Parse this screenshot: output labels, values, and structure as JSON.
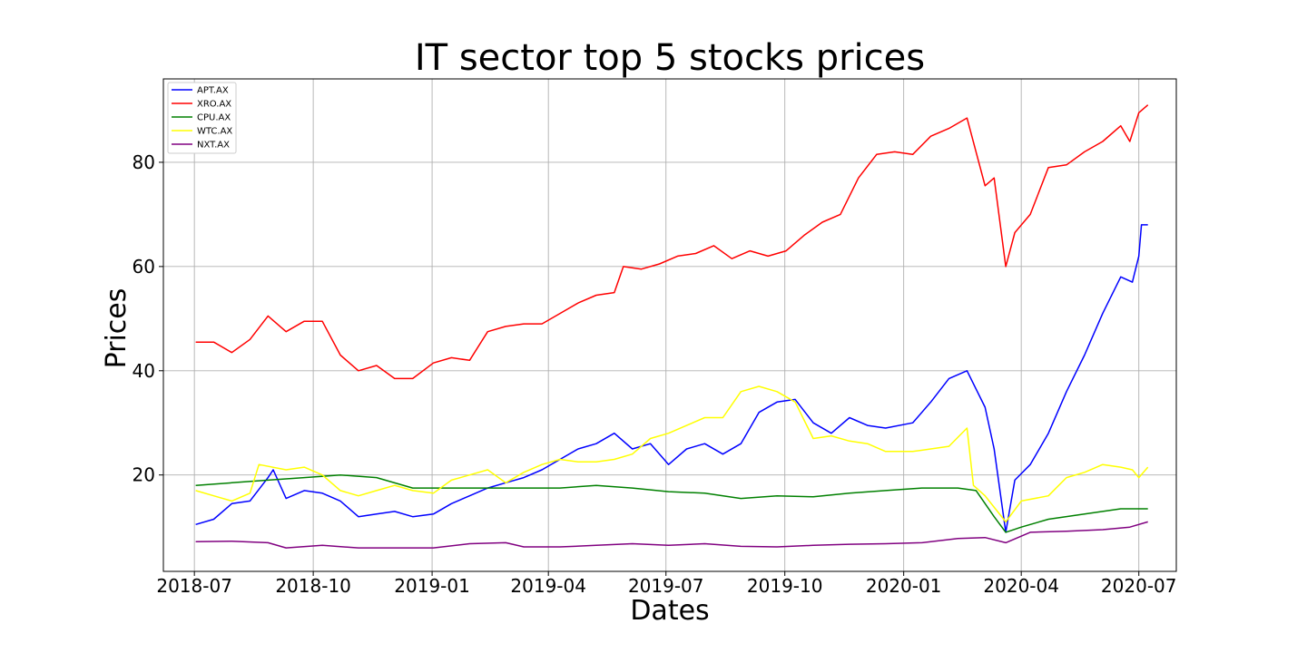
{
  "chart_data": {
    "type": "line",
    "title": "IT sector top 5 stocks prices",
    "xlabel": "Dates",
    "ylabel": "Prices",
    "x_ticks": [
      "2018-07",
      "2018-10",
      "2019-01",
      "2019-04",
      "2019-07",
      "2019-10",
      "2020-01",
      "2020-04",
      "2020-07"
    ],
    "y_ticks": [
      20,
      40,
      60,
      80
    ],
    "xlim": [
      "2018-06-07",
      "2020-07-30"
    ],
    "ylim": [
      1.5,
      96
    ],
    "grid": true,
    "legend_position": "upper-left",
    "series": [
      {
        "name": "APT.AX",
        "color": "#0000ff",
        "points": [
          [
            "2018-07-02",
            10.5
          ],
          [
            "2018-07-16",
            11.5
          ],
          [
            "2018-07-30",
            14.5
          ],
          [
            "2018-08-13",
            15.0
          ],
          [
            "2018-08-27",
            19.5
          ],
          [
            "2018-08-31",
            21.0
          ],
          [
            "2018-09-10",
            15.5
          ],
          [
            "2018-09-24",
            17.0
          ],
          [
            "2018-10-08",
            16.5
          ],
          [
            "2018-10-22",
            15.0
          ],
          [
            "2018-11-05",
            12.0
          ],
          [
            "2018-11-19",
            12.5
          ],
          [
            "2018-12-03",
            13.0
          ],
          [
            "2018-12-17",
            12.0
          ],
          [
            "2019-01-02",
            12.5
          ],
          [
            "2019-01-16",
            14.5
          ],
          [
            "2019-01-30",
            16.0
          ],
          [
            "2019-02-13",
            17.5
          ],
          [
            "2019-02-27",
            18.5
          ],
          [
            "2019-03-13",
            19.5
          ],
          [
            "2019-03-27",
            21.0
          ],
          [
            "2019-04-10",
            23.0
          ],
          [
            "2019-04-24",
            25.0
          ],
          [
            "2019-05-08",
            26.0
          ],
          [
            "2019-05-22",
            28.0
          ],
          [
            "2019-06-05",
            25.0
          ],
          [
            "2019-06-19",
            26.0
          ],
          [
            "2019-07-03",
            22.0
          ],
          [
            "2019-07-17",
            25.0
          ],
          [
            "2019-07-31",
            26.0
          ],
          [
            "2019-08-14",
            24.0
          ],
          [
            "2019-08-28",
            26.0
          ],
          [
            "2019-09-11",
            32.0
          ],
          [
            "2019-09-25",
            34.0
          ],
          [
            "2019-10-09",
            34.5
          ],
          [
            "2019-10-23",
            30.0
          ],
          [
            "2019-11-06",
            28.0
          ],
          [
            "2019-11-20",
            31.0
          ],
          [
            "2019-12-04",
            29.5
          ],
          [
            "2019-12-18",
            29.0
          ],
          [
            "2020-01-08",
            30.0
          ],
          [
            "2020-01-22",
            34.0
          ],
          [
            "2020-02-05",
            38.5
          ],
          [
            "2020-02-19",
            40.0
          ],
          [
            "2020-03-04",
            33.0
          ],
          [
            "2020-03-11",
            25.0
          ],
          [
            "2020-03-20",
            9.0
          ],
          [
            "2020-03-27",
            19.0
          ],
          [
            "2020-04-08",
            22.0
          ],
          [
            "2020-04-22",
            28.0
          ],
          [
            "2020-05-06",
            36.0
          ],
          [
            "2020-05-20",
            43.0
          ],
          [
            "2020-06-03",
            51.0
          ],
          [
            "2020-06-17",
            58.0
          ],
          [
            "2020-06-26",
            57.0
          ],
          [
            "2020-07-01",
            62.0
          ],
          [
            "2020-07-03",
            68.0
          ],
          [
            "2020-07-08",
            68.0
          ]
        ]
      },
      {
        "name": "XRO.AX",
        "color": "#ff0000",
        "points": [
          [
            "2018-07-02",
            45.5
          ],
          [
            "2018-07-16",
            45.5
          ],
          [
            "2018-07-30",
            43.5
          ],
          [
            "2018-08-13",
            46.0
          ],
          [
            "2018-08-27",
            50.5
          ],
          [
            "2018-09-10",
            47.5
          ],
          [
            "2018-09-24",
            49.5
          ],
          [
            "2018-10-08",
            49.5
          ],
          [
            "2018-10-22",
            43.0
          ],
          [
            "2018-11-05",
            40.0
          ],
          [
            "2018-11-19",
            41.0
          ],
          [
            "2018-12-03",
            38.5
          ],
          [
            "2018-12-17",
            38.5
          ],
          [
            "2019-01-02",
            41.5
          ],
          [
            "2019-01-16",
            42.5
          ],
          [
            "2019-01-30",
            42.0
          ],
          [
            "2019-02-13",
            47.5
          ],
          [
            "2019-02-27",
            48.5
          ],
          [
            "2019-03-13",
            49.0
          ],
          [
            "2019-03-27",
            49.0
          ],
          [
            "2019-04-10",
            51.0
          ],
          [
            "2019-04-24",
            53.0
          ],
          [
            "2019-05-08",
            54.5
          ],
          [
            "2019-05-22",
            55.0
          ],
          [
            "2019-05-29",
            60.0
          ],
          [
            "2019-06-12",
            59.5
          ],
          [
            "2019-06-26",
            60.5
          ],
          [
            "2019-07-10",
            62.0
          ],
          [
            "2019-07-24",
            62.5
          ],
          [
            "2019-08-07",
            64.0
          ],
          [
            "2019-08-21",
            61.5
          ],
          [
            "2019-09-04",
            63.0
          ],
          [
            "2019-09-18",
            62.0
          ],
          [
            "2019-10-02",
            63.0
          ],
          [
            "2019-10-16",
            66.0
          ],
          [
            "2019-10-30",
            68.5
          ],
          [
            "2019-11-13",
            70.0
          ],
          [
            "2019-11-27",
            77.0
          ],
          [
            "2019-12-11",
            81.5
          ],
          [
            "2019-12-25",
            82.0
          ],
          [
            "2020-01-08",
            81.5
          ],
          [
            "2020-01-22",
            85.0
          ],
          [
            "2020-02-05",
            86.5
          ],
          [
            "2020-02-19",
            88.5
          ],
          [
            "2020-03-04",
            75.5
          ],
          [
            "2020-03-11",
            77.0
          ],
          [
            "2020-03-20",
            60.0
          ],
          [
            "2020-03-27",
            66.5
          ],
          [
            "2020-04-08",
            70.0
          ],
          [
            "2020-04-22",
            79.0
          ],
          [
            "2020-05-06",
            79.5
          ],
          [
            "2020-05-20",
            82.0
          ],
          [
            "2020-06-03",
            84.0
          ],
          [
            "2020-06-17",
            87.0
          ],
          [
            "2020-06-24",
            84.0
          ],
          [
            "2020-07-01",
            89.5
          ],
          [
            "2020-07-08",
            91.0
          ]
        ]
      },
      {
        "name": "CPU.AX",
        "color": "#008000",
        "points": [
          [
            "2018-07-02",
            18.0
          ],
          [
            "2018-07-30",
            18.5
          ],
          [
            "2018-08-27",
            19.0
          ],
          [
            "2018-09-24",
            19.5
          ],
          [
            "2018-10-22",
            20.0
          ],
          [
            "2018-11-19",
            19.5
          ],
          [
            "2018-12-17",
            17.5
          ],
          [
            "2019-01-16",
            17.5
          ],
          [
            "2019-02-13",
            17.5
          ],
          [
            "2019-03-13",
            17.5
          ],
          [
            "2019-04-10",
            17.5
          ],
          [
            "2019-05-08",
            18.0
          ],
          [
            "2019-06-05",
            17.5
          ],
          [
            "2019-07-03",
            16.8
          ],
          [
            "2019-07-31",
            16.5
          ],
          [
            "2019-08-28",
            15.5
          ],
          [
            "2019-09-25",
            16.0
          ],
          [
            "2019-10-23",
            15.8
          ],
          [
            "2019-11-20",
            16.5
          ],
          [
            "2019-12-18",
            17.0
          ],
          [
            "2020-01-15",
            17.5
          ],
          [
            "2020-02-12",
            17.5
          ],
          [
            "2020-02-26",
            17.0
          ],
          [
            "2020-03-11",
            12.0
          ],
          [
            "2020-03-20",
            9.0
          ],
          [
            "2020-04-01",
            10.0
          ],
          [
            "2020-04-22",
            11.5
          ],
          [
            "2020-05-20",
            12.5
          ],
          [
            "2020-06-17",
            13.5
          ],
          [
            "2020-07-08",
            13.5
          ]
        ]
      },
      {
        "name": "WTC.AX",
        "color": "#ffff00",
        "points": [
          [
            "2018-07-02",
            17.0
          ],
          [
            "2018-07-16",
            16.0
          ],
          [
            "2018-07-30",
            15.0
          ],
          [
            "2018-08-13",
            16.5
          ],
          [
            "2018-08-20",
            22.0
          ],
          [
            "2018-09-10",
            21.0
          ],
          [
            "2018-09-24",
            21.5
          ],
          [
            "2018-10-08",
            20.0
          ],
          [
            "2018-10-22",
            17.0
          ],
          [
            "2018-11-05",
            16.0
          ],
          [
            "2018-11-19",
            17.0
          ],
          [
            "2018-12-03",
            18.0
          ],
          [
            "2018-12-17",
            17.0
          ],
          [
            "2019-01-02",
            16.5
          ],
          [
            "2019-01-16",
            19.0
          ],
          [
            "2019-01-30",
            20.0
          ],
          [
            "2019-02-13",
            21.0
          ],
          [
            "2019-02-27",
            18.5
          ],
          [
            "2019-03-13",
            20.5
          ],
          [
            "2019-03-27",
            22.0
          ],
          [
            "2019-04-10",
            23.0
          ],
          [
            "2019-04-24",
            22.5
          ],
          [
            "2019-05-08",
            22.5
          ],
          [
            "2019-05-22",
            23.0
          ],
          [
            "2019-06-05",
            24.0
          ],
          [
            "2019-06-19",
            27.0
          ],
          [
            "2019-07-03",
            28.0
          ],
          [
            "2019-07-17",
            29.5
          ],
          [
            "2019-07-31",
            31.0
          ],
          [
            "2019-08-14",
            31.0
          ],
          [
            "2019-08-28",
            36.0
          ],
          [
            "2019-09-11",
            37.0
          ],
          [
            "2019-09-25",
            36.0
          ],
          [
            "2019-10-09",
            34.0
          ],
          [
            "2019-10-23",
            27.0
          ],
          [
            "2019-11-06",
            27.5
          ],
          [
            "2019-11-20",
            26.5
          ],
          [
            "2019-12-04",
            26.0
          ],
          [
            "2019-12-18",
            24.5
          ],
          [
            "2020-01-08",
            24.5
          ],
          [
            "2020-01-22",
            25.0
          ],
          [
            "2020-02-05",
            25.5
          ],
          [
            "2020-02-19",
            29.0
          ],
          [
            "2020-02-24",
            18.0
          ],
          [
            "2020-03-04",
            16.0
          ],
          [
            "2020-03-20",
            11.0
          ],
          [
            "2020-04-01",
            15.0
          ],
          [
            "2020-04-22",
            16.0
          ],
          [
            "2020-05-06",
            19.5
          ],
          [
            "2020-05-20",
            20.5
          ],
          [
            "2020-06-03",
            22.0
          ],
          [
            "2020-06-17",
            21.5
          ],
          [
            "2020-06-26",
            21.0
          ],
          [
            "2020-07-01",
            19.5
          ],
          [
            "2020-07-08",
            21.5
          ]
        ]
      },
      {
        "name": "NXT.AX",
        "color": "#800080",
        "points": [
          [
            "2018-07-02",
            7.2
          ],
          [
            "2018-07-30",
            7.3
          ],
          [
            "2018-08-27",
            7.0
          ],
          [
            "2018-09-10",
            6.0
          ],
          [
            "2018-10-08",
            6.5
          ],
          [
            "2018-11-05",
            6.0
          ],
          [
            "2018-12-03",
            6.0
          ],
          [
            "2019-01-02",
            6.0
          ],
          [
            "2019-01-30",
            6.8
          ],
          [
            "2019-02-27",
            7.0
          ],
          [
            "2019-03-13",
            6.2
          ],
          [
            "2019-04-10",
            6.2
          ],
          [
            "2019-05-08",
            6.5
          ],
          [
            "2019-06-05",
            6.8
          ],
          [
            "2019-07-03",
            6.5
          ],
          [
            "2019-07-31",
            6.8
          ],
          [
            "2019-08-28",
            6.3
          ],
          [
            "2019-09-25",
            6.2
          ],
          [
            "2019-10-23",
            6.5
          ],
          [
            "2019-11-20",
            6.7
          ],
          [
            "2019-12-18",
            6.8
          ],
          [
            "2020-01-15",
            7.0
          ],
          [
            "2020-02-12",
            7.8
          ],
          [
            "2020-03-04",
            8.0
          ],
          [
            "2020-03-20",
            7.0
          ],
          [
            "2020-04-08",
            9.0
          ],
          [
            "2020-05-06",
            9.2
          ],
          [
            "2020-06-03",
            9.5
          ],
          [
            "2020-06-24",
            10.0
          ],
          [
            "2020-07-08",
            11.0
          ]
        ]
      }
    ]
  }
}
